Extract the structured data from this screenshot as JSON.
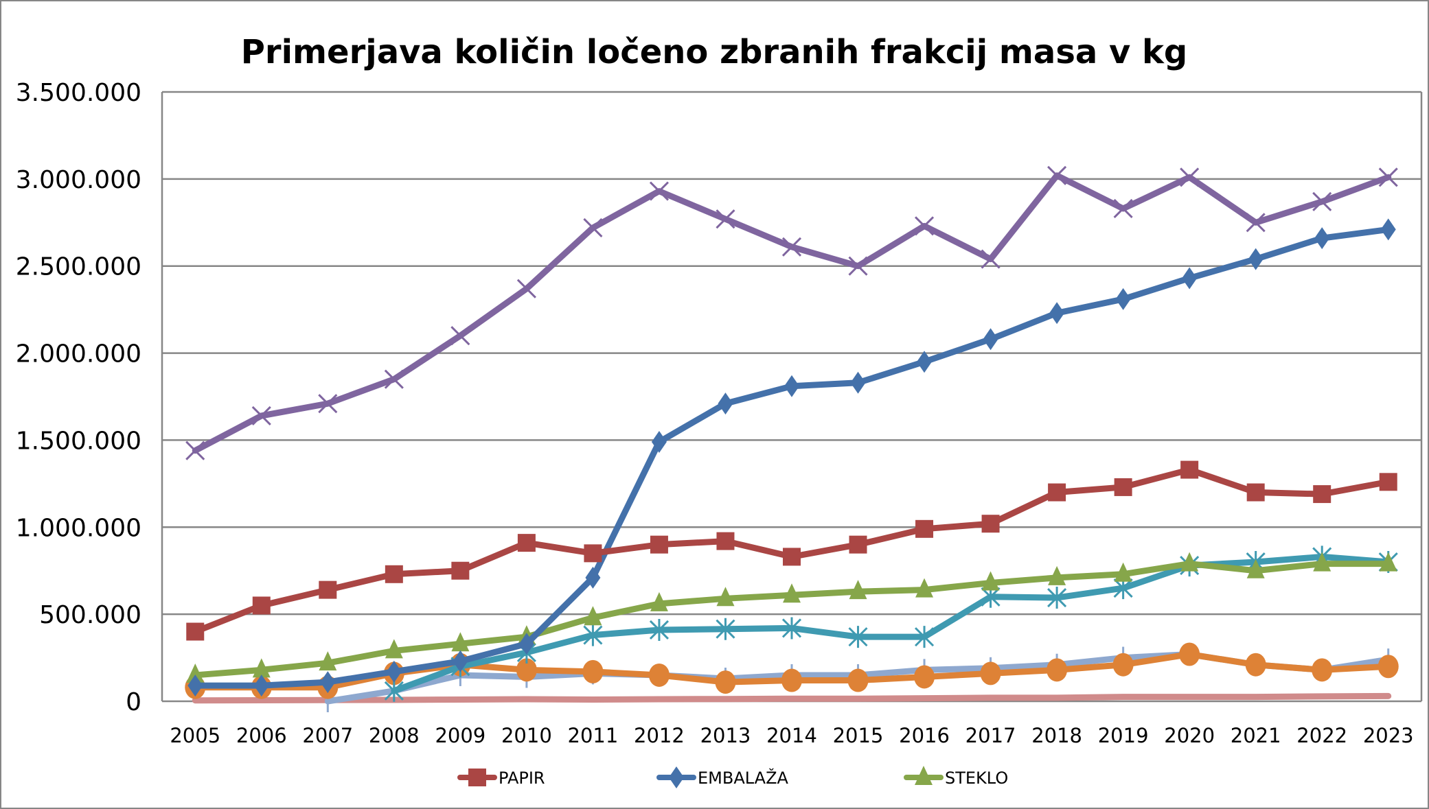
{
  "chart_data": {
    "type": "line",
    "title": "Primerjava količin ločeno zbranih frakcij masa v kg",
    "xlabel": "",
    "ylabel": "",
    "ylim": [
      0,
      3500000
    ],
    "yticks": [
      0,
      500000,
      1000000,
      1500000,
      2000000,
      2500000,
      3000000,
      3500000
    ],
    "ytick_labels": [
      "0",
      "500.000",
      "1.000.000",
      "1.500.000",
      "2.000.000",
      "2.500.000",
      "3.000.000",
      "3.500.000"
    ],
    "grid": true,
    "legend_position": "bottom",
    "categories": [
      "2005",
      "2006",
      "2007",
      "2008",
      "2009",
      "2010",
      "2011",
      "2012",
      "2013",
      "2014",
      "2015",
      "2016",
      "2017",
      "2018",
      "2019",
      "2020",
      "2021",
      "2022",
      "2023"
    ],
    "series": [
      {
        "name": "",
        "color": "#7f659f",
        "marker": "x",
        "in_legend": false,
        "values": [
          1440000,
          1640000,
          1710000,
          1850000,
          2100000,
          2370000,
          2720000,
          2930000,
          2770000,
          2610000,
          2500000,
          2730000,
          2540000,
          3020000,
          2830000,
          3010000,
          2750000,
          2870000,
          3010000
        ]
      },
      {
        "name": "",
        "color": "#d08b8b",
        "marker": "none",
        "in_legend": false,
        "values": [
          5000,
          6000,
          7000,
          8000,
          10000,
          12000,
          10000,
          12000,
          13000,
          15000,
          15000,
          17000,
          20000,
          20000,
          25000,
          25000,
          25000,
          28000,
          30000
        ]
      },
      {
        "name": "",
        "color": "#8ea8cf",
        "marker": "plus",
        "in_legend": false,
        "values": [
          null,
          null,
          0,
          60000,
          150000,
          140000,
          160000,
          150000,
          130000,
          150000,
          150000,
          180000,
          190000,
          210000,
          250000,
          270000,
          210000,
          180000,
          240000
        ]
      },
      {
        "name": "",
        "color": "#de8236",
        "marker": "circle",
        "in_legend": false,
        "values": [
          80000,
          80000,
          80000,
          160000,
          210000,
          180000,
          170000,
          150000,
          110000,
          120000,
          120000,
          140000,
          160000,
          180000,
          210000,
          270000,
          210000,
          180000,
          200000
        ]
      },
      {
        "name": "",
        "color": "#3f9ab1",
        "marker": "star",
        "in_legend": false,
        "values": [
          null,
          null,
          null,
          60000,
          200000,
          280000,
          380000,
          410000,
          415000,
          420000,
          370000,
          370000,
          600000,
          595000,
          650000,
          780000,
          800000,
          830000,
          800000
        ]
      },
      {
        "name": "STEKLO",
        "color": "#86a64a",
        "marker": "triangle",
        "in_legend": true,
        "values": [
          150000,
          180000,
          220000,
          290000,
          330000,
          370000,
          480000,
          560000,
          590000,
          610000,
          630000,
          640000,
          680000,
          710000,
          730000,
          790000,
          750000,
          790000,
          790000
        ]
      },
      {
        "name": "EMBALAŽA",
        "color": "#4471aa",
        "marker": "diamond",
        "in_legend": true,
        "values": [
          90000,
          90000,
          110000,
          170000,
          230000,
          330000,
          710000,
          1490000,
          1710000,
          1810000,
          1830000,
          1950000,
          2080000,
          2230000,
          2310000,
          2430000,
          2540000,
          2660000,
          2710000
        ]
      },
      {
        "name": "PAPIR",
        "color": "#aa4644",
        "marker": "square",
        "in_legend": true,
        "values": [
          400000,
          550000,
          640000,
          730000,
          750000,
          910000,
          850000,
          900000,
          920000,
          830000,
          900000,
          990000,
          1020000,
          1200000,
          1230000,
          1330000,
          1200000,
          1190000,
          1260000
        ]
      }
    ],
    "legend": [
      "PAPIR",
      "EMBALAŽA",
      "STEKLO"
    ]
  }
}
